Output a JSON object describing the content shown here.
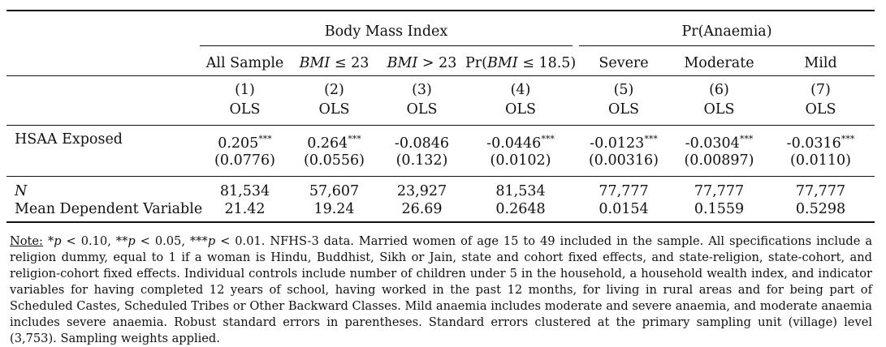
{
  "header": {
    "groups": [
      {
        "label": "Body Mass Index"
      },
      {
        "label": "Pr(Anaemia)"
      }
    ],
    "subheads": [
      {
        "plain": "All Sample"
      },
      {
        "math_var": "BMI",
        "op": " ≤ 23"
      },
      {
        "math_var": "BMI",
        "op": " > 23"
      },
      {
        "prefix": "Pr(",
        "math_var": "BMI",
        "op": " ≤ 18.5)"
      },
      {
        "plain": "Severe"
      },
      {
        "plain": "Moderate"
      },
      {
        "plain": "Mild"
      }
    ],
    "col_numbers": [
      "(1)",
      "(2)",
      "(3)",
      "(4)",
      "(5)",
      "(6)",
      "(7)"
    ],
    "methods": [
      "OLS",
      "OLS",
      "OLS",
      "OLS",
      "OLS",
      "OLS",
      "OLS"
    ]
  },
  "rows": {
    "hsaa": {
      "label": "HSAA Exposed",
      "coefs": [
        {
          "value": "0.205",
          "stars": "***"
        },
        {
          "value": "0.264",
          "stars": "***"
        },
        {
          "value": "-0.0846",
          "stars": ""
        },
        {
          "value": "-0.0446",
          "stars": "***"
        },
        {
          "value": "-0.0123",
          "stars": "***"
        },
        {
          "value": "-0.0304",
          "stars": "***"
        },
        {
          "value": "-0.0316",
          "stars": "***"
        }
      ],
      "se": [
        "(0.0776)",
        "(0.0556)",
        "(0.132)",
        "(0.0102)",
        "(0.00316)",
        "(0.00897)",
        "(0.0110)"
      ]
    },
    "n": {
      "label": "N",
      "values": [
        "81,534",
        "57,607",
        "23,927",
        "81,534",
        "77,777",
        "77,777",
        "77,777"
      ]
    },
    "mean": {
      "label": "Mean Dependent Variable",
      "values": [
        "21.42",
        "19.24",
        "26.69",
        "0.2648",
        "0.0154",
        "0.1559",
        "0.5298"
      ]
    }
  },
  "note": {
    "head": "Note:",
    "sig": [
      {
        "stars": "*",
        "cond": " < 0.10, "
      },
      {
        "stars": "**",
        "cond": " < 0.05, "
      },
      {
        "stars": "***",
        "cond": " < 0.01. "
      }
    ],
    "p": "p",
    "body": "NFHS-3 data. Married women of age 15 to 49 included in the sample. All specifications include a religion dummy, equal to 1 if a woman is Hindu, Buddhist, Sikh or Jain, state and cohort fixed effects, and state-religion, state-cohort, and religion-cohort fixed effects. Individual controls include number of children under 5 in the household, a household wealth index, and indicator variables for having completed 12 years of school, having worked in the past 12 months, for living in rural areas and for being part of Scheduled Castes, Scheduled Tribes or Other Backward Classes. Mild anaemia includes moderate and severe anaemia, and moderate anaemia includes severe anaemia. Robust standard errors in parentheses. Standard errors clustered at the primary sampling unit (village) level (3,753). Sampling weights applied."
  }
}
